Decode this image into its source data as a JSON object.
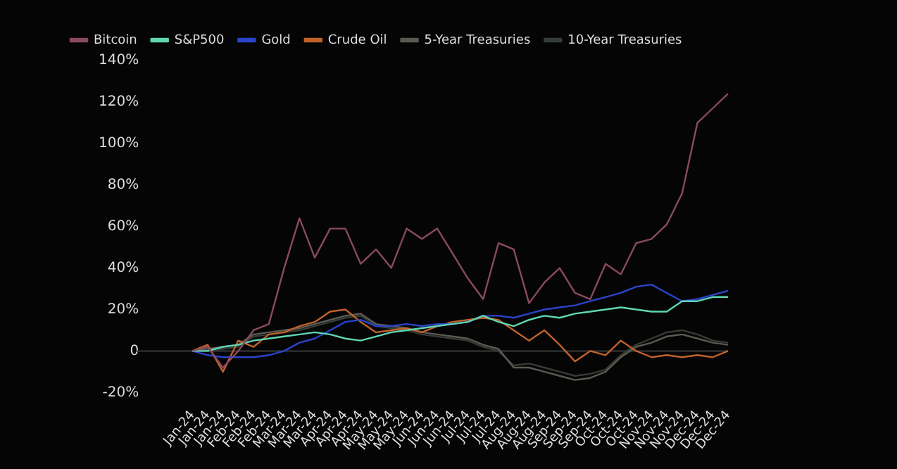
{
  "chart_data": {
    "type": "line",
    "categories": [
      "Jan-24",
      "Jan-24",
      "Jan-24",
      "Feb-24",
      "Feb-24",
      "Feb-24",
      "Mar-24",
      "Mar-24",
      "Mar-24",
      "Apr-24",
      "Apr-24",
      "Apr-24",
      "May-24",
      "May-24",
      "May-24",
      "Jun-24",
      "Jun-24",
      "Jun-24",
      "Jul-24",
      "Jul-24",
      "Jul-24",
      "Aug-24",
      "Aug-24",
      "Aug-24",
      "Sep-24",
      "Sep-24",
      "Sep-24",
      "Oct-24",
      "Oct-24",
      "Oct-24",
      "Nov-24",
      "Nov-24",
      "Nov-24",
      "Dec-24",
      "Dec-24",
      "Dec-24"
    ],
    "series": [
      {
        "name": "Bitcoin",
        "color": "#8a4a5e",
        "values": [
          0,
          2,
          -8,
          0,
          10,
          13,
          40,
          64,
          45,
          59,
          59,
          42,
          49,
          40,
          59,
          54,
          59,
          47,
          35,
          25,
          52,
          49,
          23,
          33,
          40,
          28,
          25,
          42,
          37,
          52,
          54,
          61,
          76,
          110,
          117,
          124
        ]
      },
      {
        "name": "S&P500",
        "color": "#5fd6b4",
        "values": [
          0,
          0,
          2,
          3,
          5,
          6,
          7,
          8,
          9,
          8,
          6,
          5,
          7,
          9,
          10,
          11,
          12,
          13,
          14,
          17,
          14,
          12,
          15,
          17,
          16,
          18,
          19,
          20,
          21,
          20,
          19,
          19,
          24,
          24,
          26,
          26
        ]
      },
      {
        "name": "Gold",
        "color": "#2a44c8",
        "values": [
          0,
          -2,
          -3,
          -3,
          -3,
          -2,
          0,
          4,
          6,
          10,
          14,
          15,
          12,
          12,
          13,
          12,
          13,
          13,
          14,
          17,
          17,
          16,
          18,
          20,
          21,
          22,
          24,
          26,
          28,
          31,
          32,
          28,
          24,
          25,
          27,
          29
        ]
      },
      {
        "name": "Crude Oil",
        "color": "#c0622a",
        "values": [
          0,
          3,
          -10,
          5,
          2,
          8,
          9,
          12,
          14,
          19,
          20,
          14,
          9,
          10,
          11,
          9,
          12,
          14,
          15,
          16,
          15,
          10,
          5,
          10,
          3,
          -5,
          0,
          -2,
          5,
          0,
          -3,
          -2,
          -3,
          -2,
          -3,
          0
        ]
      },
      {
        "name": "5-Year Treasuries",
        "color": "#5a5a52",
        "values": [
          0,
          1,
          2,
          3,
          8,
          9,
          10,
          11,
          13,
          15,
          17,
          18,
          13,
          12,
          11,
          9,
          8,
          7,
          6,
          3,
          1,
          -8,
          -8,
          -10,
          -12,
          -14,
          -13,
          -10,
          -3,
          2,
          4,
          7,
          8,
          6,
          4,
          3
        ]
      },
      {
        "name": "10-Year Treasuries",
        "color": "#363c36",
        "values": [
          0,
          0,
          1,
          2,
          7,
          8,
          9,
          10,
          12,
          14,
          16,
          17,
          12,
          11,
          10,
          8,
          7,
          6,
          5,
          2,
          0,
          -7,
          -6,
          -8,
          -10,
          -12,
          -11,
          -9,
          -2,
          3,
          6,
          9,
          10,
          8,
          5,
          4
        ]
      }
    ],
    "ylim": [
      -20,
      140
    ],
    "yticks": [
      {
        "value": -20,
        "label": "-20%"
      },
      0,
      {
        "value": 20,
        "label": "20%"
      },
      {
        "value": 40,
        "label": "40%"
      },
      {
        "value": 60,
        "label": "60%"
      },
      {
        "value": 80,
        "label": "80%"
      },
      {
        "value": 100,
        "label": "100%"
      },
      {
        "value": 120,
        "label": "120%"
      },
      {
        "value": 140,
        "label": "140%"
      }
    ],
    "ref_lines": [
      {
        "axis": "y",
        "value": 0,
        "color": "#3a3a3a"
      }
    ],
    "grid": false,
    "legend": "top left",
    "marker": "none",
    "line_style": "solid"
  }
}
